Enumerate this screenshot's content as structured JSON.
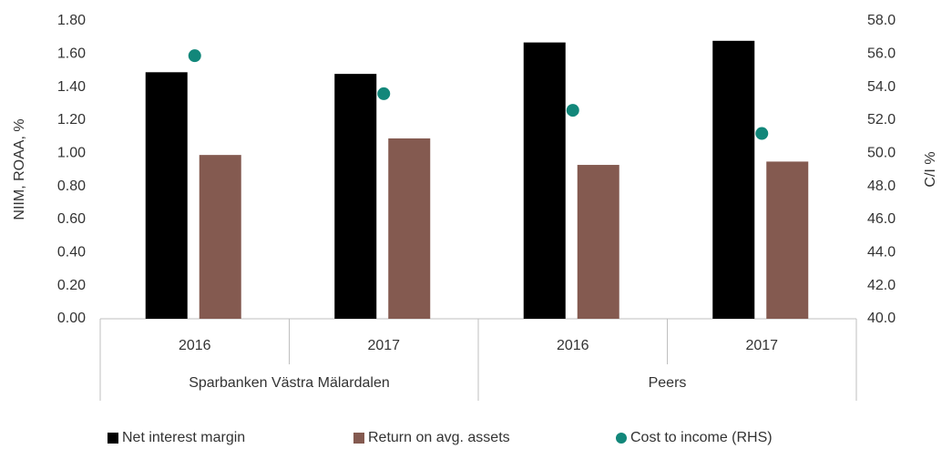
{
  "chart_data": {
    "type": "bar",
    "categories": [
      "2016",
      "2017",
      "2016",
      "2017"
    ],
    "category_groups": [
      "Sparbanken Västra Mälardalen",
      "Peers"
    ],
    "ylabel": "NIIM, ROAA, %",
    "y2label": "C/I %",
    "series": [
      {
        "name": "Net interest margin",
        "color": "#000000",
        "values": [
          1.49,
          1.48,
          1.67,
          1.68
        ]
      },
      {
        "name": "Return on avg. assets",
        "color": "#845a50",
        "values": [
          0.99,
          1.09,
          0.93,
          0.95
        ]
      },
      {
        "name": "Cost to income (RHS)",
        "color": "#12877a",
        "type": "scatter",
        "axis": "y2",
        "values": [
          55.9,
          53.6,
          52.6,
          51.2
        ]
      }
    ],
    "ylim": [
      0,
      1.8
    ],
    "yticks": [
      {
        "value": 0,
        "label": "0.00"
      },
      {
        "value": 0.2,
        "label": "0.20"
      },
      {
        "value": 0.4,
        "label": "0.40"
      },
      {
        "value": 0.6,
        "label": "0.60"
      },
      {
        "value": 0.8,
        "label": "0.80"
      },
      {
        "value": 1,
        "label": "1.00"
      },
      {
        "value": 1.2,
        "label": "1.20"
      },
      {
        "value": 1.4,
        "label": "1.40"
      },
      {
        "value": 1.6,
        "label": "1.60"
      },
      {
        "value": 1.8,
        "label": "1.80"
      }
    ],
    "y2lim": [
      40,
      58
    ],
    "y2ticks": [
      {
        "value": 40,
        "label": "40.0"
      },
      {
        "value": 42,
        "label": "42.0"
      },
      {
        "value": 44,
        "label": "44.0"
      },
      {
        "value": 46,
        "label": "46.0"
      },
      {
        "value": 48,
        "label": "48.0"
      },
      {
        "value": 50,
        "label": "50.0"
      },
      {
        "value": 52,
        "label": "52.0"
      },
      {
        "value": 54,
        "label": "54.0"
      },
      {
        "value": 56,
        "label": "56.0"
      },
      {
        "value": 58,
        "label": "58.0"
      }
    ],
    "legend": "bottom"
  }
}
